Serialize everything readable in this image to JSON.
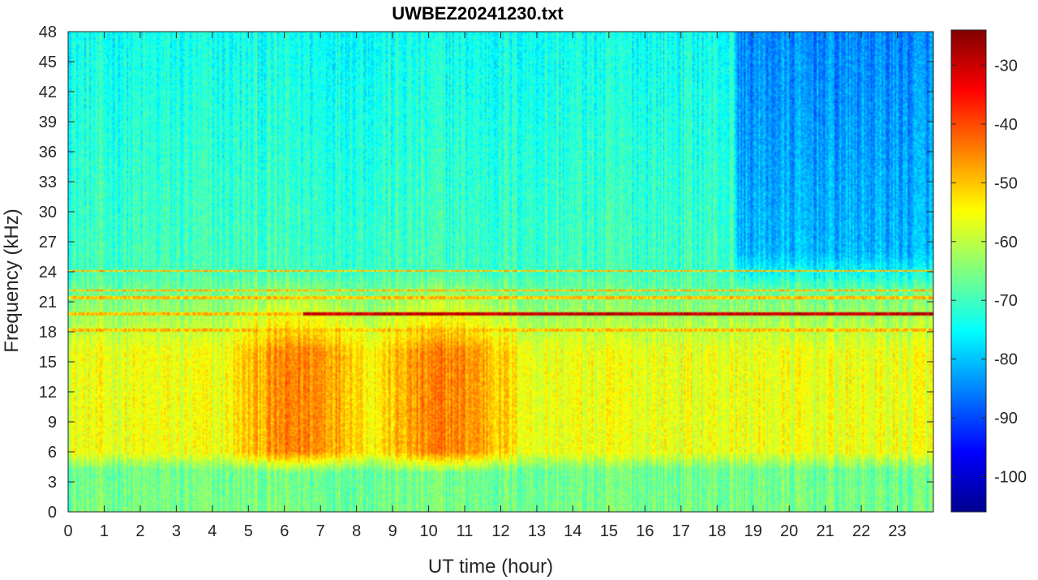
{
  "chart_data": {
    "type": "heatmap",
    "title": "UWBEZ20241230.txt",
    "xlabel": "UT time (hour)",
    "ylabel": "Frequency (kHz)",
    "xlim": [
      0,
      24
    ],
    "ylim": [
      0,
      48
    ],
    "x_ticks": [
      0,
      1,
      2,
      3,
      4,
      5,
      6,
      7,
      8,
      9,
      10,
      11,
      12,
      13,
      14,
      15,
      16,
      17,
      18,
      19,
      20,
      21,
      22,
      23
    ],
    "y_ticks": [
      0,
      3,
      6,
      9,
      12,
      15,
      18,
      21,
      24,
      27,
      30,
      33,
      36,
      39,
      42,
      45,
      48
    ],
    "colorbar": {
      "colormap": "jet",
      "clim": [
        -106,
        -24
      ],
      "ticks": [
        -100,
        -90,
        -80,
        -70,
        -60,
        -50,
        -40,
        -30
      ]
    },
    "features": {
      "transmitter_lines_khz": [
        19.8,
        21.4,
        24.1,
        18.2,
        22.1
      ],
      "strong_line": {
        "freq_khz": 19.8,
        "from_hour": 6.5,
        "to_hour": 24,
        "level_db": -30
      },
      "broadband_emission": {
        "freq_range_khz": [
          4,
          17
        ],
        "peak_hours": [
          [
            5,
            8
          ],
          [
            9,
            12
          ]
        ],
        "level_db": -45
      },
      "background_level_db": -70,
      "quiet_upper_band": {
        "freq_range_khz": [
          22,
          48
        ],
        "hours": [
          18.5,
          24
        ],
        "level_db": -85
      }
    }
  }
}
